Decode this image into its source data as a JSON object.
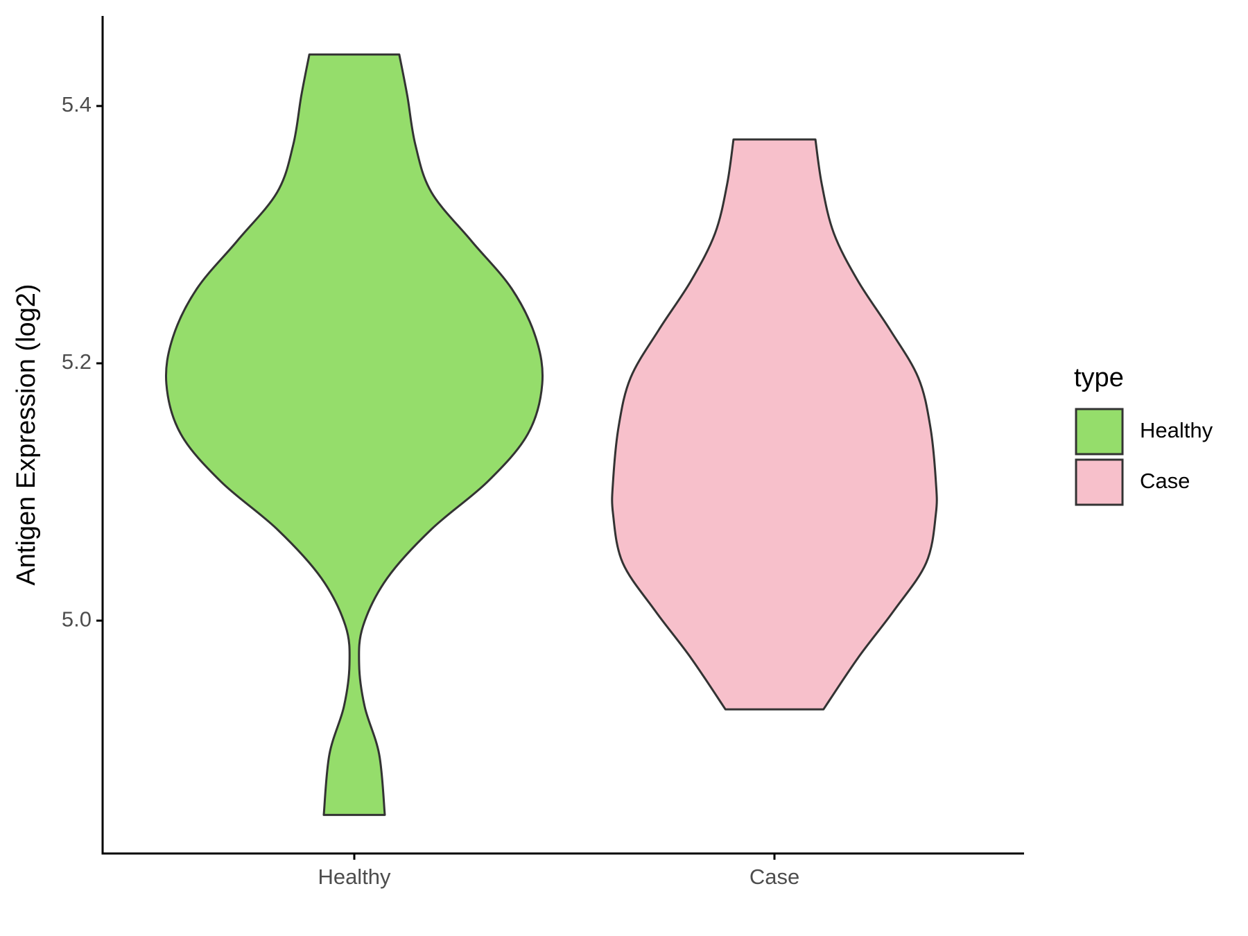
{
  "chart_data": {
    "type": "violin",
    "y_label": "Antigen Expression (log2)",
    "legend_title": "type",
    "categories": [
      "Healthy",
      "Case"
    ],
    "ylim": [
      4.819,
      5.47
    ],
    "yticks": [
      {
        "value": 5.0,
        "label": "5.0"
      },
      {
        "value": 5.2,
        "label": "5.2"
      },
      {
        "value": 5.4,
        "label": "5.4"
      }
    ],
    "series": [
      {
        "name": "Healthy",
        "color": "#95dd6b",
        "y": [
          5.44,
          5.408,
          5.37,
          5.333,
          5.295,
          5.258,
          5.22,
          5.184,
          5.145,
          5.108,
          5.071,
          5.033,
          4.996,
          4.966,
          4.933,
          4.896,
          4.849
        ],
        "density": [
          56,
          66,
          76,
          96,
          146,
          196,
          226,
          234,
          216,
          166,
          96,
          41,
          11,
          6,
          13,
          31,
          38
        ]
      },
      {
        "name": "Case",
        "color": "#f7c0cb",
        "y": [
          5.374,
          5.339,
          5.301,
          5.264,
          5.226,
          5.189,
          5.151,
          5.108,
          5.083,
          5.045,
          5.008,
          4.971,
          4.931
        ],
        "density": [
          51,
          59,
          74,
          104,
          144,
          179,
          194,
          201,
          201,
          189,
          149,
          104,
          61
        ]
      }
    ]
  }
}
